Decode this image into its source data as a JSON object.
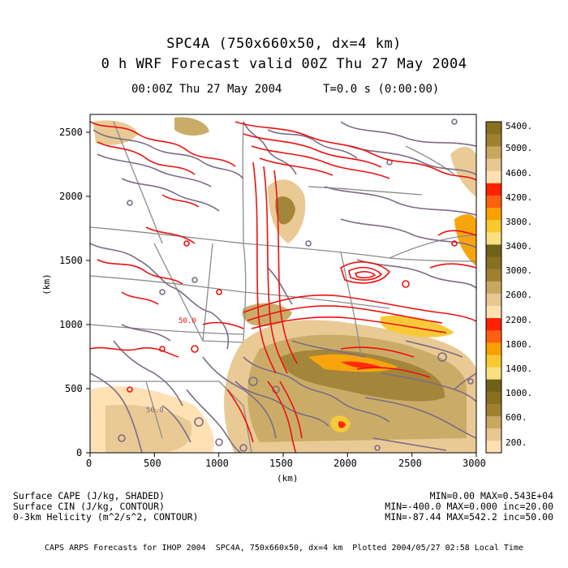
{
  "header": {
    "title_line1": "SPC4A (750x660x50, dx=4 km)",
    "title_line2": "0 h WRF Forecast valid 00Z Thu 27 May 2004",
    "valid_time": "00:00Z Thu 27 May 2004",
    "model_time": "T=0.0 s (0:00:00)"
  },
  "axes": {
    "x_label": "(km)",
    "y_label": "(km)",
    "x_ticks": [
      "0",
      "500",
      "1000",
      "1500",
      "2000",
      "2500",
      "3000"
    ],
    "y_ticks": [
      "0",
      "500",
      "1000",
      "1500",
      "2000",
      "2500"
    ],
    "x_range_km": [
      0,
      3000
    ],
    "y_range_km": [
      0,
      2640
    ]
  },
  "colorbar": {
    "labels": [
      "5400.",
      "5000.",
      "4600.",
      "4200.",
      "3800.",
      "3400.",
      "3000.",
      "2600.",
      "2200.",
      "1800.",
      "1400.",
      "1000.",
      "600.",
      "200."
    ],
    "colors": [
      "#ffe0b0",
      "#e8c890",
      "#c8a860",
      "#a08030",
      "#887020",
      "#706018",
      "#f8e080",
      "#f8c830",
      "#f8a000",
      "#ff6010",
      "#ff2000",
      "#ffe0b0",
      "#e8c890",
      "#c8a860",
      "#a08030",
      "#887020",
      "#706018",
      "#f8e080",
      "#f8c830",
      "#f8a000",
      "#ff6010",
      "#ff2000",
      "#ffe0b0",
      "#e8c890",
      "#c8a860",
      "#a08030",
      "#887020"
    ]
  },
  "fields": {
    "cape": {
      "name": "Surface CAPE (J/kg, SHADED)",
      "stats": "MIN=0.00 MAX=0.543E+04"
    },
    "cin": {
      "name": "Surface CIN (J/kg, CONTOUR)",
      "stats": "MIN=-400.0 MAX=0.000 inc=20.00"
    },
    "helicity": {
      "name": "0-3km Helicity (m^2/s^2, CONTOUR)",
      "stats": "MIN=-87.44 MAX=542.2 inc=50.00"
    }
  },
  "map_labels": [
    "50.0",
    "50.0"
  ],
  "footer": {
    "text": "CAPS ARPS Forecasts for IHOP 2004  SPC4A, 750x660x50, dx=4 km  Plotted 2004/05/27 02:58 Local Time"
  }
}
